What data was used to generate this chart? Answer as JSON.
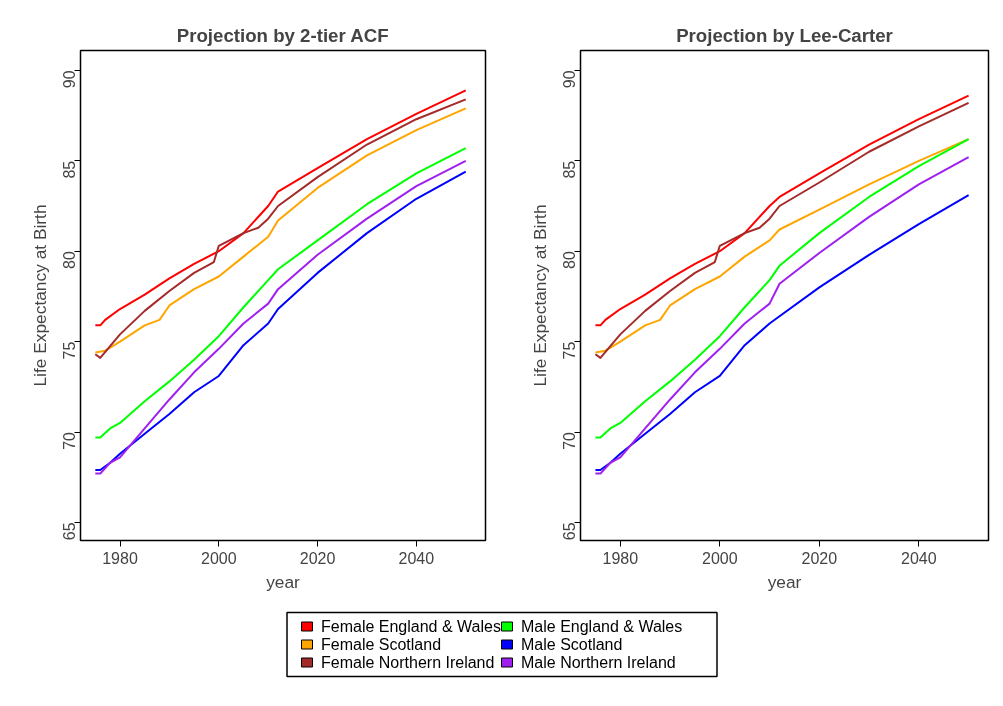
{
  "chart_data": [
    {
      "type": "line",
      "title": "Projection by 2-tier ACF",
      "xlabel": "year",
      "ylabel": "Life Expectancy at Birth",
      "xlim": [
        1972,
        2054
      ],
      "ylim": [
        64,
        91.1
      ],
      "xticks": [
        1980,
        2000,
        2020,
        2040
      ],
      "yticks": [
        65,
        70,
        75,
        80,
        85,
        90
      ],
      "grid": false,
      "legend": "bottom",
      "series": [
        {
          "name": "Female England & Wales",
          "color": "#ff0000",
          "x": [
            1975,
            1976,
            1977,
            1980,
            1985,
            1990,
            1995,
            2000,
            2005,
            2010,
            2012,
            2020,
            2030,
            2040,
            2050
          ],
          "values": [
            75.9,
            75.9,
            76.2,
            76.8,
            77.6,
            78.5,
            79.3,
            80.0,
            81.0,
            82.5,
            83.3,
            84.6,
            86.2,
            87.6,
            88.9
          ]
        },
        {
          "name": "Female Scotland",
          "color": "#ffa500",
          "x": [
            1975,
            1977,
            1980,
            1985,
            1988,
            1990,
            1995,
            2000,
            2005,
            2010,
            2012,
            2020,
            2030,
            2040,
            2050
          ],
          "values": [
            74.4,
            74.5,
            75.0,
            75.9,
            76.2,
            77.0,
            77.9,
            78.6,
            79.7,
            80.8,
            81.7,
            83.5,
            85.3,
            86.7,
            87.9
          ]
        },
        {
          "name": "Female Northern Ireland",
          "color": "#a52a2a",
          "x": [
            1975,
            1976,
            1980,
            1985,
            1990,
            1995,
            1999,
            2000,
            2005,
            2008,
            2010,
            2012,
            2020,
            2030,
            2040,
            2050
          ],
          "values": [
            74.3,
            74.1,
            75.4,
            76.7,
            77.8,
            78.8,
            79.4,
            80.3,
            81.0,
            81.3,
            81.8,
            82.5,
            84.1,
            85.9,
            87.3,
            88.4
          ]
        },
        {
          "name": "Male England & Wales",
          "color": "#00ff00",
          "x": [
            1975,
            1976,
            1978,
            1980,
            1985,
            1990,
            1995,
            2000,
            2005,
            2010,
            2012,
            2020,
            2030,
            2040,
            2050
          ],
          "values": [
            69.7,
            69.7,
            70.2,
            70.5,
            71.7,
            72.8,
            74.0,
            75.3,
            76.9,
            78.4,
            79.0,
            80.6,
            82.6,
            84.3,
            85.7
          ]
        },
        {
          "name": "Male Scotland",
          "color": "#0000ff",
          "x": [
            1975,
            1976,
            1978,
            1980,
            1985,
            1990,
            1995,
            2000,
            2005,
            2010,
            2012,
            2020,
            2030,
            2040,
            2050
          ],
          "values": [
            67.9,
            67.9,
            68.3,
            68.8,
            69.9,
            71.0,
            72.2,
            73.1,
            74.8,
            76.0,
            76.8,
            78.8,
            81.0,
            82.9,
            84.4
          ]
        },
        {
          "name": "Male Northern Ireland",
          "color": "#a020f0",
          "x": [
            1975,
            1976,
            1978,
            1980,
            1985,
            1990,
            1995,
            2000,
            2005,
            2010,
            2012,
            2020,
            2030,
            2040,
            2050
          ],
          "values": [
            67.7,
            67.7,
            68.3,
            68.6,
            70.2,
            71.8,
            73.3,
            74.6,
            76.0,
            77.1,
            77.9,
            79.8,
            81.8,
            83.6,
            85.0
          ]
        }
      ]
    },
    {
      "type": "line",
      "title": "Projection by Lee-Carter",
      "xlabel": "year",
      "ylabel": "Life Expectancy at Birth",
      "xlim": [
        1972,
        2054
      ],
      "ylim": [
        64,
        91.1
      ],
      "xticks": [
        1980,
        2000,
        2020,
        2040
      ],
      "yticks": [
        65,
        70,
        75,
        80,
        85,
        90
      ],
      "grid": false,
      "series": [
        {
          "color": "#ff0000",
          "x": [
            1975,
            1976,
            1977,
            1980,
            1985,
            1990,
            1995,
            2000,
            2005,
            2010,
            2012,
            2020,
            2030,
            2040,
            2050
          ],
          "values": [
            75.9,
            75.9,
            76.2,
            76.8,
            77.6,
            78.5,
            79.3,
            80.0,
            81.0,
            82.5,
            83.0,
            84.3,
            85.9,
            87.3,
            88.6
          ]
        },
        {
          "color": "#ffa500",
          "x": [
            1975,
            1977,
            1980,
            1985,
            1988,
            1990,
            1995,
            2000,
            2005,
            2010,
            2012,
            2020,
            2030,
            2040,
            2050
          ],
          "values": [
            74.4,
            74.5,
            75.0,
            75.9,
            76.2,
            77.0,
            77.9,
            78.6,
            79.7,
            80.6,
            81.2,
            82.3,
            83.7,
            85.0,
            86.2
          ]
        },
        {
          "color": "#a52a2a",
          "x": [
            1975,
            1976,
            1980,
            1985,
            1990,
            1995,
            1999,
            2000,
            2005,
            2008,
            2010,
            2012,
            2020,
            2030,
            2040,
            2050
          ],
          "values": [
            74.3,
            74.1,
            75.4,
            76.7,
            77.8,
            78.8,
            79.4,
            80.3,
            81.0,
            81.3,
            81.8,
            82.5,
            83.8,
            85.5,
            86.9,
            88.2
          ]
        },
        {
          "color": "#00ff00",
          "x": [
            1975,
            1976,
            1978,
            1980,
            1985,
            1990,
            1995,
            2000,
            2005,
            2010,
            2012,
            2020,
            2030,
            2040,
            2050
          ],
          "values": [
            69.7,
            69.7,
            70.2,
            70.5,
            71.7,
            72.8,
            74.0,
            75.3,
            76.9,
            78.4,
            79.2,
            81.0,
            83.0,
            84.7,
            86.2
          ]
        },
        {
          "color": "#0000ff",
          "x": [
            1975,
            1976,
            1978,
            1980,
            1985,
            1990,
            1995,
            2000,
            2005,
            2010,
            2012,
            2020,
            2030,
            2040,
            2050
          ],
          "values": [
            67.9,
            67.9,
            68.3,
            68.8,
            69.9,
            71.0,
            72.2,
            73.1,
            74.8,
            76.0,
            76.4,
            78.0,
            79.8,
            81.5,
            83.1
          ]
        },
        {
          "color": "#a020f0",
          "x": [
            1975,
            1976,
            1978,
            1980,
            1985,
            1990,
            1995,
            2000,
            2005,
            2010,
            2012,
            2020,
            2030,
            2040,
            2050
          ],
          "values": [
            67.7,
            67.7,
            68.3,
            68.6,
            70.2,
            71.8,
            73.3,
            74.6,
            76.0,
            77.1,
            78.2,
            79.9,
            81.9,
            83.7,
            85.2
          ]
        }
      ]
    }
  ]
}
